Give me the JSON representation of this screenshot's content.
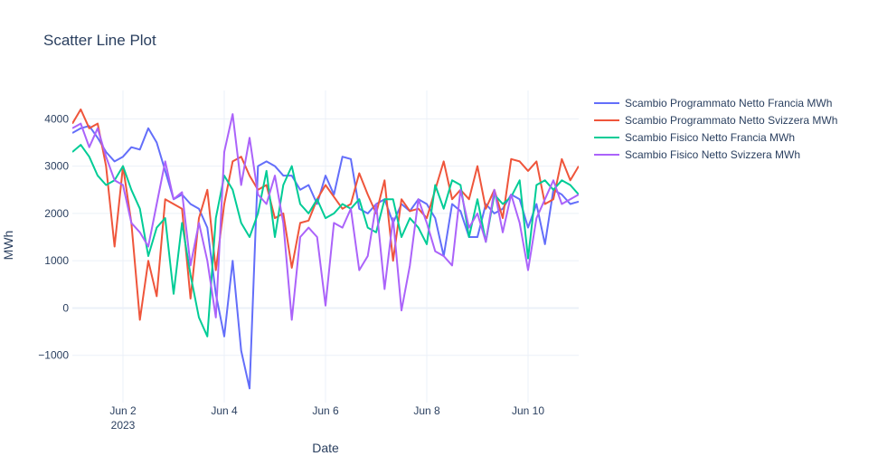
{
  "chart_data": {
    "type": "line",
    "title": "Scatter Line Plot",
    "xlabel": "Date",
    "ylabel": "MWh",
    "x_ticks": [
      "Jun 2",
      "Jun 4",
      "Jun 6",
      "Jun 8",
      "Jun 10"
    ],
    "x_tick_year": "2023",
    "x_range": [
      "2023-06-01 00:00",
      "2023-06-11 00:00"
    ],
    "y_range": [
      -2000,
      4600
    ],
    "y_ticks": [
      {
        "value": -1000,
        "label": "−1000"
      },
      {
        "value": 0,
        "label": "0"
      },
      {
        "value": 1000,
        "label": "1000"
      },
      {
        "value": 2000,
        "label": "2000"
      },
      {
        "value": 3000,
        "label": "3000"
      },
      {
        "value": 4000,
        "label": "4000"
      }
    ],
    "grid": true,
    "legend_position": "right",
    "x_unit": "hours since 2023-06-01 00:00",
    "series": [
      {
        "name": "Scambio Programmato Netto Francia MWh",
        "color": "#636efa",
        "points": [
          [
            0,
            3700
          ],
          [
            6,
            3800
          ],
          [
            12,
            3850
          ],
          [
            18,
            3600
          ],
          [
            24,
            3300
          ],
          [
            30,
            3100
          ],
          [
            36,
            3200
          ],
          [
            42,
            3400
          ],
          [
            48,
            3350
          ],
          [
            54,
            3800
          ],
          [
            60,
            3500
          ],
          [
            66,
            2900
          ],
          [
            72,
            2300
          ],
          [
            78,
            2400
          ],
          [
            84,
            2200
          ],
          [
            90,
            2100
          ],
          [
            96,
            1700
          ],
          [
            102,
            300
          ],
          [
            108,
            -600
          ],
          [
            114,
            1000
          ],
          [
            120,
            -900
          ],
          [
            126,
            -1700
          ],
          [
            132,
            3000
          ],
          [
            138,
            3100
          ],
          [
            144,
            3000
          ],
          [
            150,
            2800
          ],
          [
            156,
            2800
          ],
          [
            162,
            2500
          ],
          [
            168,
            2600
          ],
          [
            174,
            2200
          ],
          [
            180,
            2800
          ],
          [
            186,
            2400
          ],
          [
            192,
            3200
          ],
          [
            198,
            3150
          ],
          [
            204,
            2100
          ],
          [
            210,
            2000
          ],
          [
            216,
            2200
          ],
          [
            222,
            2300
          ],
          [
            228,
            1800
          ],
          [
            234,
            2200
          ],
          [
            240,
            2050
          ],
          [
            246,
            2300
          ],
          [
            252,
            2200
          ],
          [
            258,
            1900
          ],
          [
            264,
            1100
          ],
          [
            270,
            2200
          ],
          [
            276,
            2050
          ],
          [
            282,
            1500
          ],
          [
            288,
            1500
          ],
          [
            294,
            2200
          ],
          [
            300,
            2000
          ],
          [
            306,
            2100
          ],
          [
            312,
            2400
          ],
          [
            318,
            2300
          ],
          [
            324,
            1700
          ],
          [
            330,
            2200
          ],
          [
            336,
            1350
          ],
          [
            342,
            2500
          ],
          [
            348,
            2400
          ],
          [
            354,
            2200
          ],
          [
            360,
            2250
          ]
        ]
      },
      {
        "name": "Scambio Programmato Netto Svizzera MWh",
        "color": "#ef553b",
        "points": [
          [
            0,
            3900
          ],
          [
            6,
            4200
          ],
          [
            12,
            3800
          ],
          [
            18,
            3900
          ],
          [
            24,
            3000
          ],
          [
            30,
            1300
          ],
          [
            36,
            3000
          ],
          [
            42,
            1800
          ],
          [
            48,
            -250
          ],
          [
            54,
            1000
          ],
          [
            60,
            250
          ],
          [
            66,
            2300
          ],
          [
            72,
            2200
          ],
          [
            78,
            2100
          ],
          [
            84,
            200
          ],
          [
            90,
            1900
          ],
          [
            96,
            2500
          ],
          [
            102,
            800
          ],
          [
            108,
            2200
          ],
          [
            114,
            3100
          ],
          [
            120,
            3200
          ],
          [
            126,
            2800
          ],
          [
            132,
            2500
          ],
          [
            138,
            2600
          ],
          [
            144,
            1900
          ],
          [
            150,
            2000
          ],
          [
            156,
            850
          ],
          [
            162,
            1800
          ],
          [
            168,
            1850
          ],
          [
            174,
            2300
          ],
          [
            180,
            2600
          ],
          [
            186,
            2350
          ],
          [
            192,
            2100
          ],
          [
            198,
            2200
          ],
          [
            204,
            2850
          ],
          [
            210,
            2400
          ],
          [
            216,
            2000
          ],
          [
            222,
            2700
          ],
          [
            228,
            1000
          ],
          [
            234,
            2300
          ],
          [
            240,
            2050
          ],
          [
            246,
            2100
          ],
          [
            252,
            1900
          ],
          [
            258,
            2500
          ],
          [
            264,
            3100
          ],
          [
            270,
            2300
          ],
          [
            276,
            2500
          ],
          [
            282,
            2300
          ],
          [
            288,
            3000
          ],
          [
            294,
            2100
          ],
          [
            300,
            2500
          ],
          [
            306,
            1900
          ],
          [
            312,
            3150
          ],
          [
            318,
            3100
          ],
          [
            324,
            2900
          ],
          [
            330,
            3100
          ],
          [
            336,
            2200
          ],
          [
            342,
            2300
          ],
          [
            348,
            3150
          ],
          [
            354,
            2700
          ],
          [
            360,
            3000
          ]
        ]
      },
      {
        "name": "Scambio Fisico Netto Francia MWh",
        "color": "#00cc96",
        "points": [
          [
            0,
            3300
          ],
          [
            6,
            3450
          ],
          [
            12,
            3200
          ],
          [
            18,
            2800
          ],
          [
            24,
            2600
          ],
          [
            30,
            2700
          ],
          [
            36,
            3000
          ],
          [
            42,
            2500
          ],
          [
            48,
            2100
          ],
          [
            54,
            1100
          ],
          [
            60,
            1700
          ],
          [
            66,
            1900
          ],
          [
            72,
            300
          ],
          [
            78,
            1800
          ],
          [
            84,
            700
          ],
          [
            90,
            -200
          ],
          [
            96,
            -600
          ],
          [
            102,
            1900
          ],
          [
            108,
            2800
          ],
          [
            114,
            2500
          ],
          [
            120,
            1800
          ],
          [
            126,
            1500
          ],
          [
            132,
            2000
          ],
          [
            138,
            2900
          ],
          [
            144,
            1500
          ],
          [
            150,
            2600
          ],
          [
            156,
            3000
          ],
          [
            162,
            2200
          ],
          [
            168,
            2000
          ],
          [
            174,
            2300
          ],
          [
            180,
            1900
          ],
          [
            186,
            2000
          ],
          [
            192,
            2200
          ],
          [
            198,
            2100
          ],
          [
            204,
            2300
          ],
          [
            210,
            1700
          ],
          [
            216,
            1600
          ],
          [
            222,
            2300
          ],
          [
            228,
            2300
          ],
          [
            234,
            1500
          ],
          [
            240,
            1900
          ],
          [
            246,
            1700
          ],
          [
            252,
            1350
          ],
          [
            258,
            2600
          ],
          [
            264,
            2100
          ],
          [
            270,
            2700
          ],
          [
            276,
            2600
          ],
          [
            282,
            1500
          ],
          [
            288,
            2300
          ],
          [
            294,
            1400
          ],
          [
            300,
            2400
          ],
          [
            306,
            2200
          ],
          [
            312,
            2350
          ],
          [
            318,
            2700
          ],
          [
            324,
            1050
          ],
          [
            330,
            2600
          ],
          [
            336,
            2700
          ],
          [
            342,
            2500
          ],
          [
            348,
            2700
          ],
          [
            354,
            2600
          ],
          [
            360,
            2400
          ]
        ]
      },
      {
        "name": "Scambio Fisico Netto Svizzera MWh",
        "color": "#ab63fa",
        "points": [
          [
            0,
            3800
          ],
          [
            6,
            3900
          ],
          [
            12,
            3400
          ],
          [
            18,
            3800
          ],
          [
            24,
            3200
          ],
          [
            30,
            2700
          ],
          [
            36,
            2600
          ],
          [
            42,
            1800
          ],
          [
            48,
            1600
          ],
          [
            54,
            1300
          ],
          [
            60,
            2200
          ],
          [
            66,
            3100
          ],
          [
            72,
            2300
          ],
          [
            78,
            2450
          ],
          [
            84,
            900
          ],
          [
            90,
            1800
          ],
          [
            96,
            1000
          ],
          [
            102,
            -200
          ],
          [
            108,
            3300
          ],
          [
            114,
            4100
          ],
          [
            120,
            2600
          ],
          [
            126,
            3600
          ],
          [
            132,
            2400
          ],
          [
            138,
            2200
          ],
          [
            144,
            2800
          ],
          [
            150,
            1800
          ],
          [
            156,
            -250
          ],
          [
            162,
            1500
          ],
          [
            168,
            1700
          ],
          [
            174,
            1500
          ],
          [
            180,
            50
          ],
          [
            186,
            1800
          ],
          [
            192,
            1700
          ],
          [
            198,
            2100
          ],
          [
            204,
            800
          ],
          [
            210,
            1100
          ],
          [
            216,
            2200
          ],
          [
            222,
            400
          ],
          [
            228,
            1900
          ],
          [
            234,
            -50
          ],
          [
            240,
            900
          ],
          [
            246,
            2300
          ],
          [
            252,
            1800
          ],
          [
            258,
            1200
          ],
          [
            264,
            1100
          ],
          [
            270,
            900
          ],
          [
            276,
            2500
          ],
          [
            282,
            1700
          ],
          [
            288,
            2000
          ],
          [
            294,
            1400
          ],
          [
            300,
            2500
          ],
          [
            306,
            1600
          ],
          [
            312,
            2400
          ],
          [
            318,
            1800
          ],
          [
            324,
            800
          ],
          [
            330,
            1900
          ],
          [
            336,
            2300
          ],
          [
            342,
            2700
          ],
          [
            348,
            2200
          ],
          [
            354,
            2300
          ],
          [
            360,
            2400
          ]
        ]
      }
    ]
  }
}
